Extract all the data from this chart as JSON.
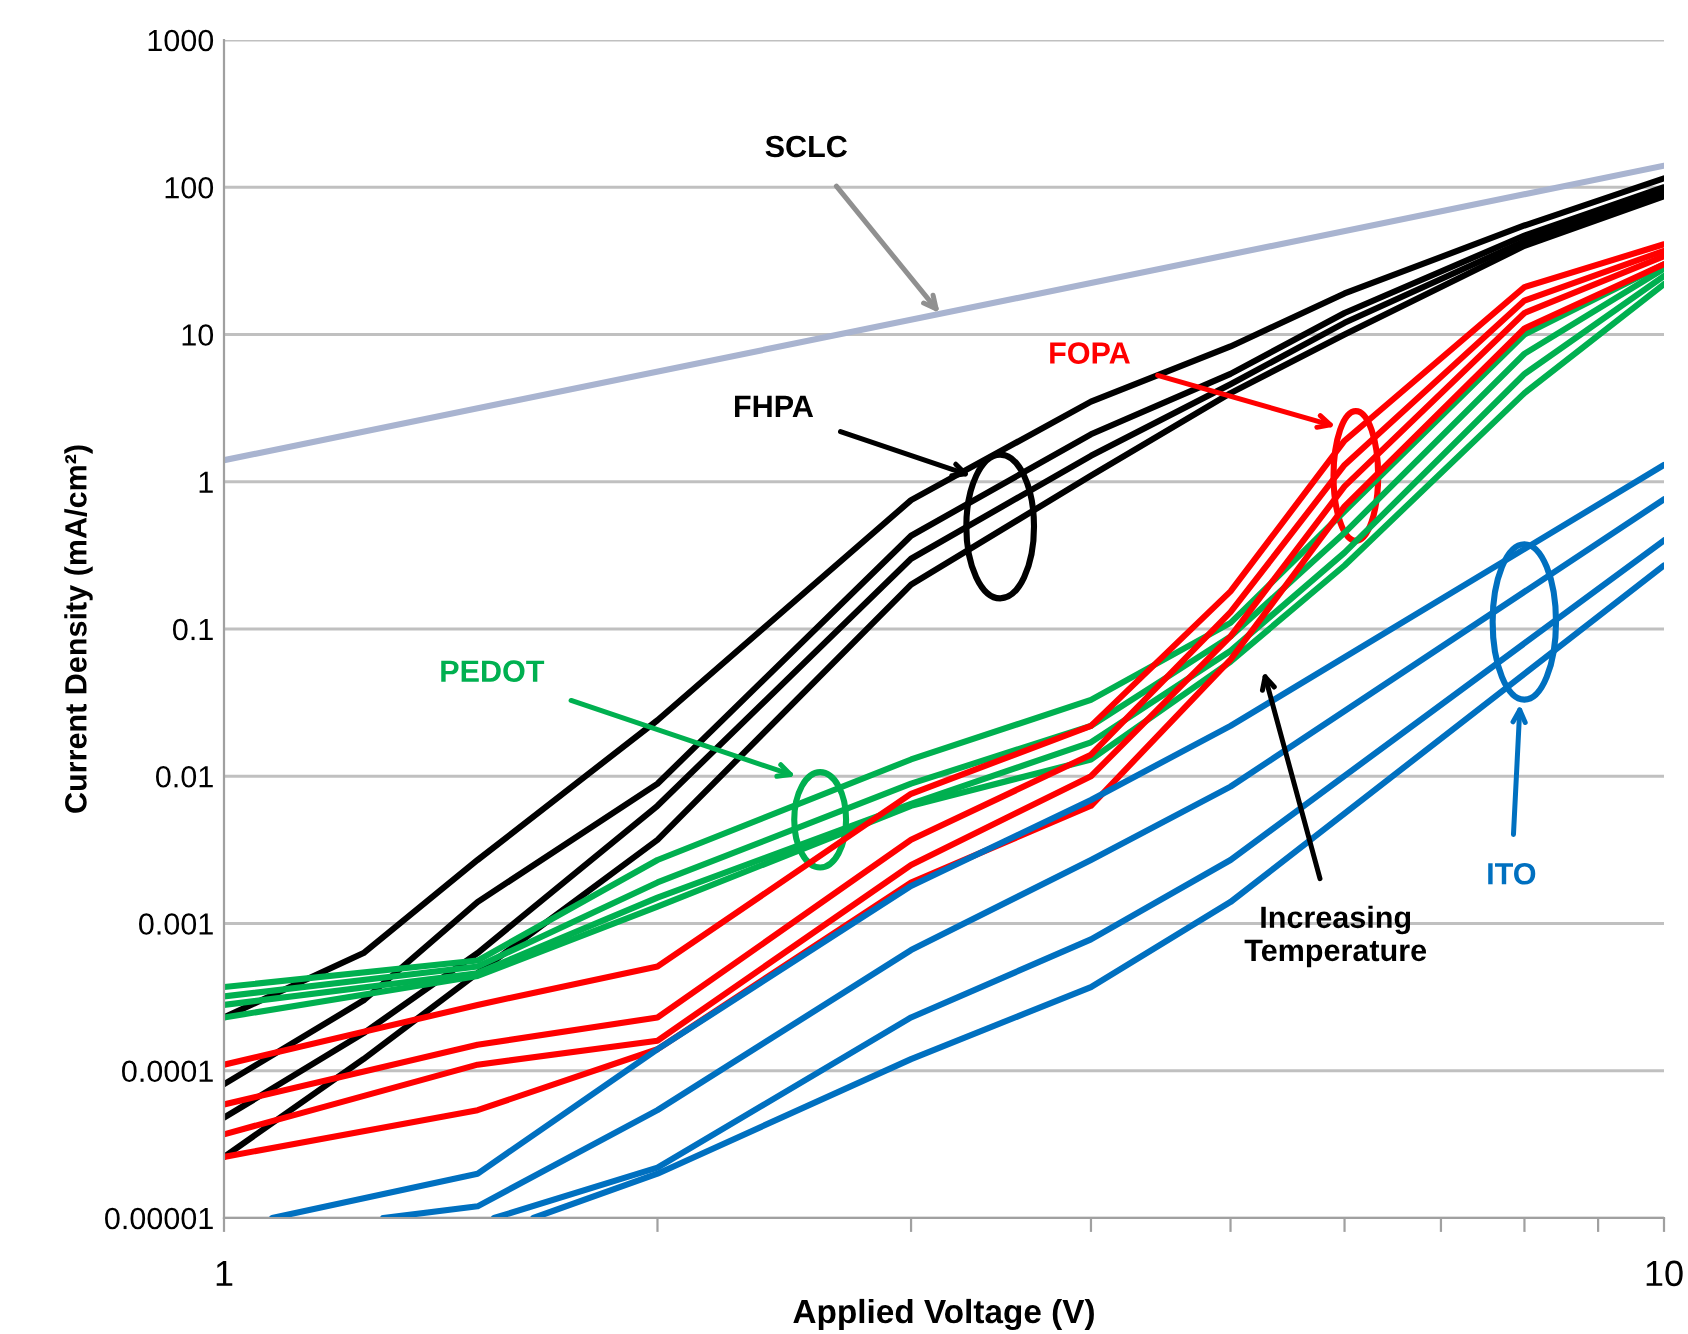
{
  "chart_data": {
    "type": "line",
    "xlabel": "Applied Voltage (V)",
    "ylabel": "Current Density (mA/cm²)",
    "log": "xy",
    "grid": "y",
    "marker": "none",
    "line_style": "solid",
    "xlim": [
      1,
      10
    ],
    "ylim": [
      1e-05,
      1000
    ],
    "xticks": [
      1,
      {
        "value": 2,
        "label": null
      },
      {
        "value": 3,
        "label": null
      },
      {
        "value": 4,
        "label": null
      },
      {
        "value": 5,
        "label": null
      },
      {
        "value": 6,
        "label": null
      },
      {
        "value": 7,
        "label": null
      },
      {
        "value": 8,
        "label": null
      },
      {
        "value": 9,
        "label": null
      },
      10
    ],
    "yticks": [
      {
        "value": 1e-05,
        "label": "0.00001"
      },
      {
        "value": 0.0001,
        "label": "0.0001"
      },
      0.001,
      0.01,
      0.1,
      1,
      10,
      100,
      1000
    ],
    "series": [
      {
        "color": "#a9b4d0",
        "x": [
          1,
          10
        ],
        "values": [
          1.4,
          140
        ]
      },
      {
        "color": "#000000",
        "x": [
          1,
          1.25,
          1.5,
          2,
          3,
          4,
          5,
          6,
          8,
          10
        ],
        "values": [
          0.00023,
          0.00063,
          0.0027,
          0.024,
          0.75,
          3.5,
          8.3,
          19,
          55,
          115
        ]
      },
      {
        "color": "#000000",
        "x": [
          1,
          1.25,
          1.5,
          2,
          3,
          4,
          5,
          6,
          8,
          10
        ],
        "values": [
          8.1e-05,
          0.0003,
          0.0014,
          0.0089,
          0.43,
          2.1,
          5.4,
          14,
          47,
          100
        ]
      },
      {
        "color": "#000000",
        "x": [
          1,
          1.25,
          1.5,
          2,
          3,
          4,
          5,
          6,
          8,
          10
        ],
        "values": [
          4.8e-05,
          0.00018,
          0.00063,
          0.0063,
          0.3,
          1.5,
          4.6,
          12,
          43,
          95
        ]
      },
      {
        "color": "#000000",
        "x": [
          1,
          1.25,
          1.5,
          2,
          3,
          4,
          5,
          6,
          8,
          10
        ],
        "values": [
          2.6e-05,
          0.00012,
          0.00046,
          0.0037,
          0.2,
          1.1,
          4,
          10,
          40,
          87
        ]
      },
      {
        "color": "#00b050",
        "x": [
          1,
          1.5,
          2,
          3,
          4,
          5,
          6,
          8,
          10
        ],
        "values": [
          0.00037,
          0.00056,
          0.0027,
          0.013,
          0.033,
          0.11,
          0.63,
          10,
          30
        ]
      },
      {
        "color": "#00b050",
        "x": [
          1,
          1.5,
          2,
          3,
          4,
          5,
          6,
          8,
          10
        ],
        "values": [
          0.00032,
          0.00051,
          0.0019,
          0.0089,
          0.022,
          0.089,
          0.45,
          7.4,
          28
        ]
      },
      {
        "color": "#00b050",
        "x": [
          1,
          1.5,
          2,
          3,
          4,
          5,
          6,
          8,
          10
        ],
        "values": [
          0.00028,
          0.00046,
          0.0015,
          0.0065,
          0.017,
          0.071,
          0.33,
          5.4,
          25
        ]
      },
      {
        "color": "#00b050",
        "x": [
          1,
          1.5,
          2,
          3,
          4,
          5,
          6,
          8,
          10
        ],
        "values": [
          0.00023,
          0.00044,
          0.0013,
          0.0063,
          0.013,
          0.06,
          0.27,
          4,
          22
        ]
      },
      {
        "color": "#ff0000",
        "x": [
          1,
          1.5,
          2,
          3,
          4,
          5,
          6,
          8,
          10
        ],
        "values": [
          0.00011,
          0.00028,
          0.00051,
          0.0076,
          0.022,
          0.18,
          1.9,
          21,
          41
        ]
      },
      {
        "color": "#ff0000",
        "x": [
          1,
          1.5,
          2,
          3,
          4,
          5,
          6,
          8,
          10
        ],
        "values": [
          5.9e-05,
          0.00015,
          0.00023,
          0.0037,
          0.014,
          0.13,
          1.3,
          17,
          37
        ]
      },
      {
        "color": "#ff0000",
        "x": [
          1,
          1.5,
          2,
          3,
          4,
          5,
          6,
          8,
          10
        ],
        "values": [
          3.7e-05,
          0.00011,
          0.00016,
          0.0025,
          0.01,
          0.089,
          0.93,
          14,
          34
        ]
      },
      {
        "color": "#ff0000",
        "x": [
          1,
          1.5,
          2,
          3,
          4,
          5,
          6,
          8,
          10
        ],
        "values": [
          2.6e-05,
          5.4e-05,
          0.00014,
          0.0019,
          0.0063,
          0.062,
          0.68,
          11,
          30
        ]
      },
      {
        "color": "#0070c0",
        "x": [
          1.08,
          1.5,
          2,
          3,
          4,
          5,
          10
        ],
        "values": [
          1e-05,
          2e-05,
          0.00014,
          0.0018,
          0.0069,
          0.022,
          1.3
        ]
      },
      {
        "color": "#0070c0",
        "x": [
          1.29,
          1.5,
          2,
          3,
          4,
          5,
          10
        ],
        "values": [
          1e-05,
          1.2e-05,
          5.4e-05,
          0.00066,
          0.0027,
          0.0085,
          0.76
        ]
      },
      {
        "color": "#0070c0",
        "x": [
          1.54,
          2,
          3,
          4,
          5,
          10
        ],
        "values": [
          1e-05,
          2.2e-05,
          0.00023,
          0.00078,
          0.0027,
          0.4
        ]
      },
      {
        "color": "#0070c0",
        "x": [
          1.64,
          2,
          3,
          4,
          5,
          10
        ],
        "values": [
          1e-05,
          2e-05,
          0.00012,
          0.00037,
          0.0014,
          0.27
        ]
      }
    ],
    "annotations": [
      {
        "text": "SCLC",
        "x": 3.14,
        "y": 14
      },
      {
        "text": "FHPA",
        "x": 3.3,
        "y": 1.1
      },
      "FOPA",
      "PEDOT",
      "ITO",
      "Increasing\nTemperature"
    ]
  }
}
